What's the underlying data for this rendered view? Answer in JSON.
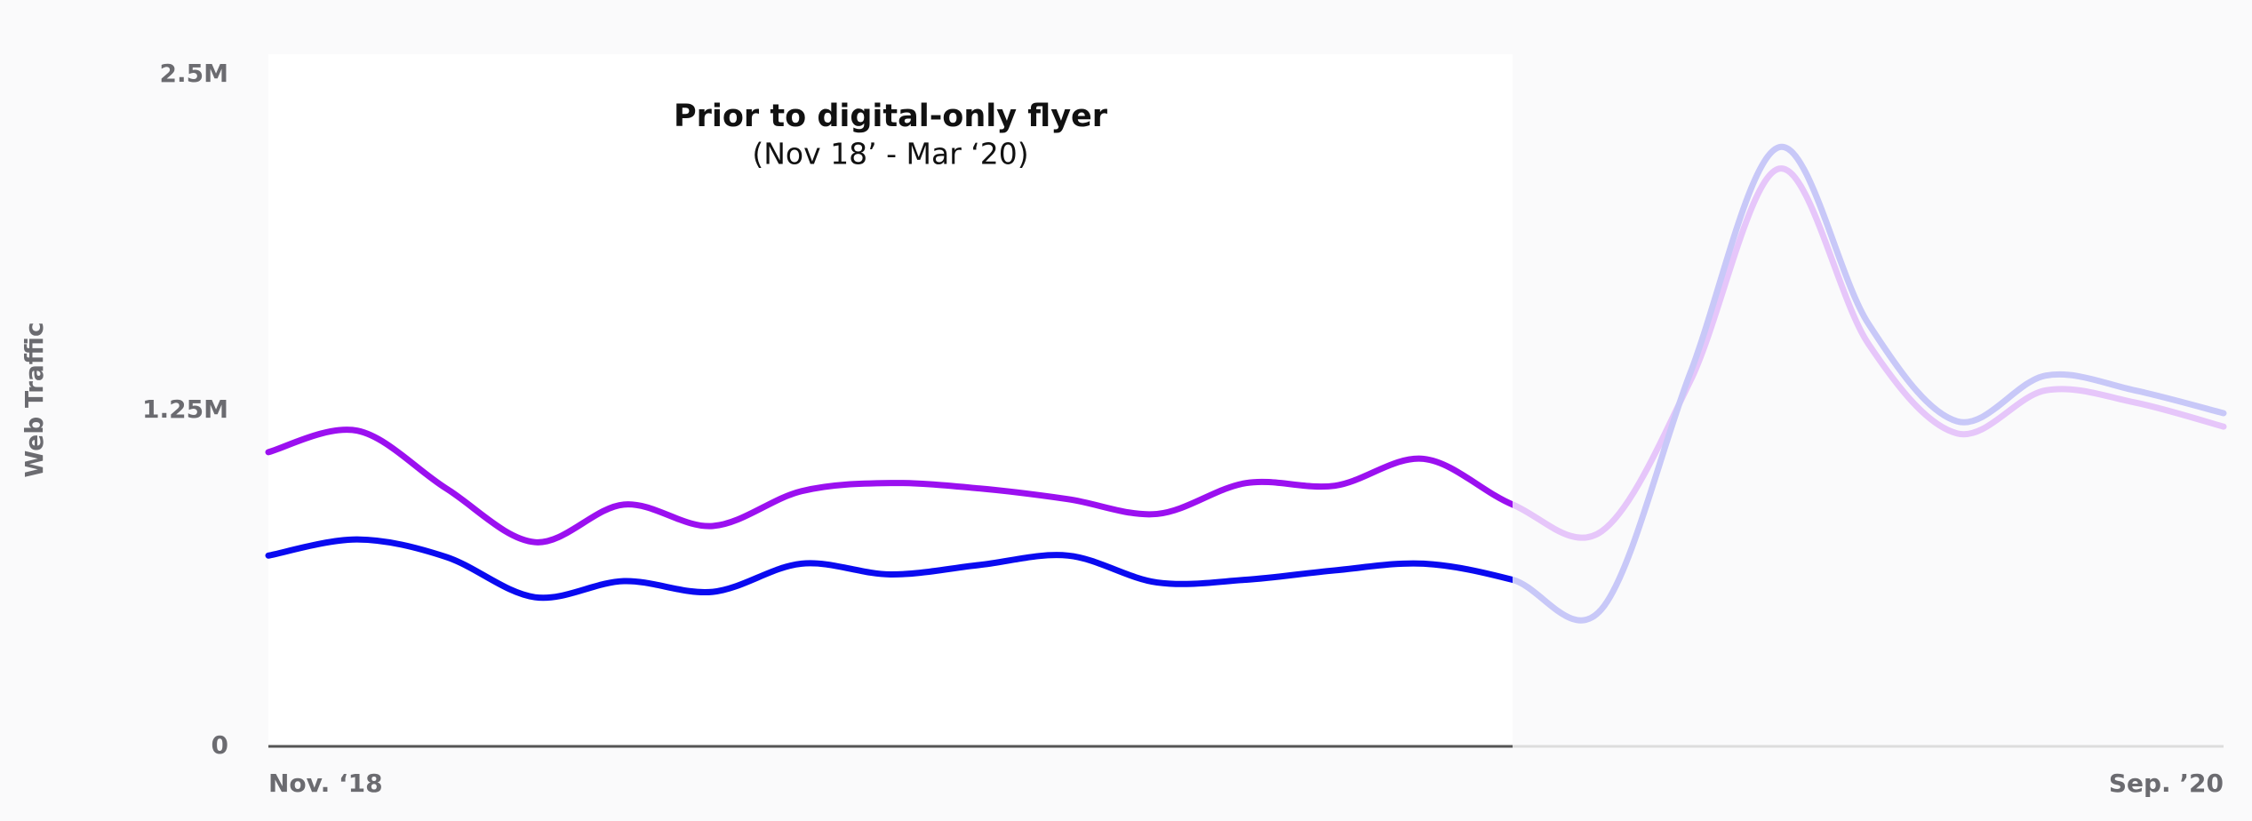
{
  "chart_data": {
    "type": "line",
    "ylabel": "Web Traffic",
    "categories": [
      "Nov. ‘18",
      null,
      null,
      null,
      null,
      null,
      null,
      null,
      null,
      null,
      null,
      null,
      null,
      null,
      null,
      null,
      null,
      null,
      null,
      null,
      null,
      null,
      "Sep. ’20"
    ],
    "series": [
      {
        "color": "#9b10f0",
        "faded_color": "#e6c6fa",
        "values": [
          1095000,
          1175000,
          960000,
          760000,
          900000,
          820000,
          950000,
          980000,
          960000,
          920000,
          865000,
          980000,
          970000,
          1070000,
          900000,
          800000,
          1360000,
          2150000,
          1500000,
          1165000,
          1325000,
          1280000,
          1190000
        ]
      },
      {
        "color": "#0a0af0",
        "faded_color": "#c8c8f8",
        "values": [
          710000,
          770000,
          705000,
          555000,
          615000,
          575000,
          680000,
          640000,
          675000,
          710000,
          610000,
          620000,
          655000,
          680000,
          620000,
          510000,
          1390000,
          2230000,
          1575000,
          1210000,
          1380000,
          1325000,
          1240000
        ]
      }
    ],
    "ylim": [
      0,
      2500000
    ],
    "yticks": [
      0,
      {
        "value": 1250000,
        "label": "1.25M"
      },
      {
        "value": 2500000,
        "label": "2.5M"
      }
    ],
    "annotations": [
      {
        "text": "Prior to digital-only flyer",
        "subtext": "(Nov 18’ - Mar ‘20)",
        "x_range": [
          0,
          14
        ]
      }
    ]
  }
}
